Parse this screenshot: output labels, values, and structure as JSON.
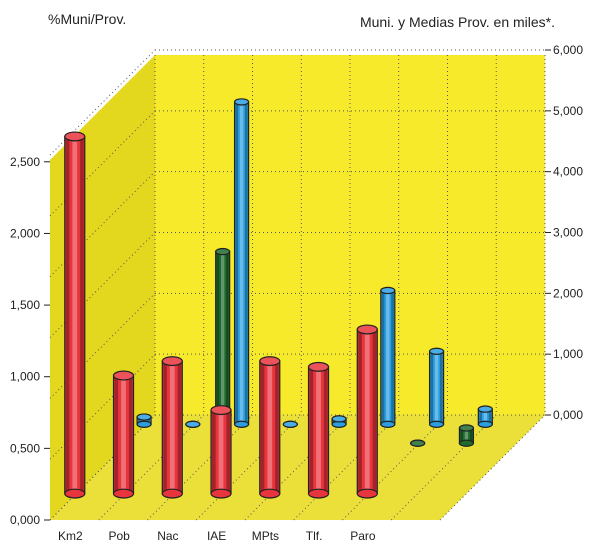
{
  "chart_data": {
    "type": "bar",
    "left_axis_title": "%Muni/Prov.",
    "right_axis_title": "Muni. y Medias Prov. en miles*.",
    "categories": [
      "Km2",
      "Pob",
      "Nac",
      "IAE",
      "MPts",
      "Tlf.",
      "Paro",
      ""
    ],
    "left_ticks": [
      "0,000",
      "0,500",
      "1,000",
      "1,500",
      "2,000",
      "2,500"
    ],
    "right_ticks": [
      "0,000",
      "1,000",
      "2,000",
      "3,000",
      "4,000",
      "5,000",
      "6,000"
    ],
    "ylim_left": [
      0,
      2.5
    ],
    "ylim_right": [
      0,
      6000
    ],
    "series": [
      {
        "name": "",
        "axis": "left",
        "color": "#e8343c",
        "values": [
          2.48,
          0.82,
          0.92,
          0.58,
          0.92,
          0.88,
          1.14,
          null
        ]
      },
      {
        "name": "",
        "axis": "right",
        "color": "#1f6b2e",
        "values": [
          280,
          0,
          3150,
          0,
          0,
          1800,
          0,
          250
        ]
      },
      {
        "name": "",
        "axis": "right",
        "color": "#2a9ee0",
        "values": [
          120,
          0,
          5300,
          0,
          90,
          2200,
          1200,
          250
        ]
      }
    ],
    "colors": {
      "background": "#f5ea2a",
      "grid": "#555555"
    },
    "grid": true
  }
}
